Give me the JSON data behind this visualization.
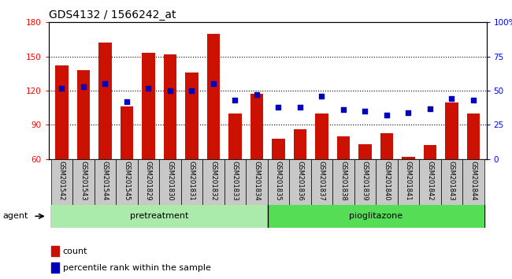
{
  "title": "GDS4132 / 1566242_at",
  "samples": [
    "GSM201542",
    "GSM201543",
    "GSM201544",
    "GSM201545",
    "GSM201829",
    "GSM201830",
    "GSM201831",
    "GSM201832",
    "GSM201833",
    "GSM201834",
    "GSM201835",
    "GSM201836",
    "GSM201837",
    "GSM201838",
    "GSM201839",
    "GSM201840",
    "GSM201841",
    "GSM201842",
    "GSM201843",
    "GSM201844"
  ],
  "counts": [
    142,
    138,
    162,
    106,
    153,
    152,
    136,
    170,
    100,
    117,
    78,
    86,
    100,
    80,
    73,
    83,
    62,
    72,
    110,
    100
  ],
  "percentile": [
    52,
    53,
    55,
    42,
    52,
    50,
    50,
    55,
    43,
    47,
    38,
    38,
    46,
    36,
    35,
    32,
    34,
    37,
    44,
    43
  ],
  "bar_color": "#cc1100",
  "dot_color": "#0000bb",
  "ylim_left": [
    60,
    180
  ],
  "ylim_right": [
    0,
    100
  ],
  "yticks_left": [
    60,
    90,
    120,
    150,
    180
  ],
  "yticks_right": [
    0,
    25,
    50,
    75,
    100
  ],
  "group_split": 10,
  "legend_count": "count",
  "legend_pct": "percentile rank within the sample"
}
